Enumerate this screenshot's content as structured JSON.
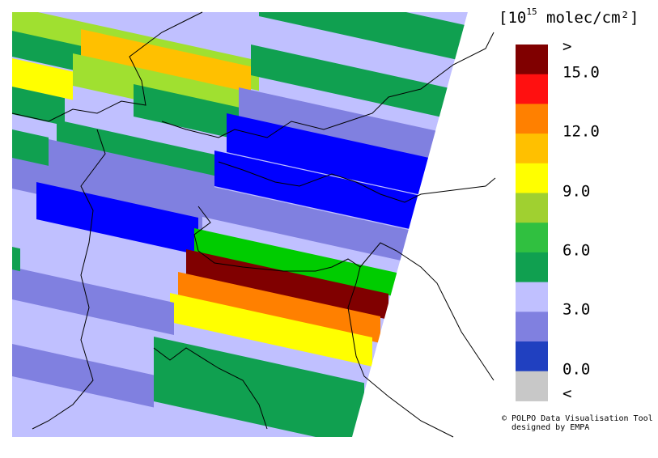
{
  "legend": {
    "title_prefix": "[10",
    "title_exponent": "15",
    "title_suffix": " molec/cm²]",
    "labels": [
      ">",
      "15.0",
      "12.0",
      "9.0",
      "6.0",
      "3.0",
      "0.0",
      "<"
    ],
    "colors": [
      "#800000",
      "#ff1010",
      "#ff8000",
      "#ffc000",
      "#ffff00",
      "#a0d030",
      "#30c040",
      "#10a050",
      "#c0c0ff",
      "#8080e0",
      "#2040c0",
      "#c8c8c8"
    ]
  },
  "credits": [
    "© POLPO Data Visualisation Tool",
    "designed by EMPA"
  ]
}
